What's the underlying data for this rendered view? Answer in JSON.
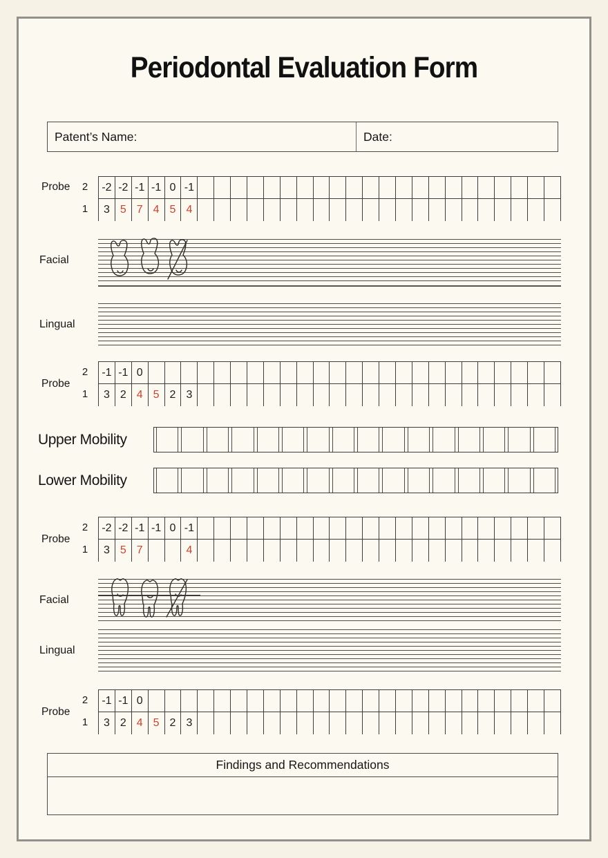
{
  "title": "Periodontal Evaluation Form",
  "patient_box": {
    "name_label": "Patent’s Name:",
    "date_label": "Date:"
  },
  "probe_sections": [
    {
      "label": "Probe",
      "row_labels": [
        "2",
        "1"
      ],
      "columns": 28,
      "rows": [
        [
          {
            "t": "-2"
          },
          {
            "t": "-2"
          },
          {
            "t": "-1"
          },
          {
            "t": "-1"
          },
          {
            "t": "0"
          },
          {
            "t": "-1"
          }
        ],
        [
          {
            "t": "3"
          },
          {
            "t": "5",
            "red": true
          },
          {
            "t": "7",
            "red": true
          },
          {
            "t": "4",
            "red": true
          },
          {
            "t": "5",
            "red": true
          },
          {
            "t": "4",
            "red": true
          }
        ]
      ]
    },
    {
      "label": "Probe",
      "row_labels": [
        "2",
        "1"
      ],
      "columns": 28,
      "rows": [
        [
          {
            "t": "-1"
          },
          {
            "t": "-1"
          },
          {
            "t": "0"
          }
        ],
        [
          {
            "t": "3"
          },
          {
            "t": "2"
          },
          {
            "t": "4",
            "red": true
          },
          {
            "t": "5",
            "red": true
          },
          {
            "t": "2"
          },
          {
            "t": "3"
          }
        ]
      ]
    },
    {
      "label": "Probe",
      "row_labels": [
        "2",
        "1"
      ],
      "columns": 28,
      "rows": [
        [
          {
            "t": "-2"
          },
          {
            "t": "-2"
          },
          {
            "t": "-1"
          },
          {
            "t": "-1"
          },
          {
            "t": "0"
          },
          {
            "t": "-1"
          }
        ],
        [
          {
            "t": "3"
          },
          {
            "t": "5",
            "red": true
          },
          {
            "t": "7",
            "red": true
          },
          {
            "t": ""
          },
          {
            "t": ""
          },
          {
            "t": "4",
            "red": true
          }
        ]
      ]
    },
    {
      "label": "Probe",
      "row_labels": [
        "2",
        "1"
      ],
      "columns": 28,
      "rows": [
        [
          {
            "t": "-1"
          },
          {
            "t": "-1"
          },
          {
            "t": "0"
          }
        ],
        [
          {
            "t": "3"
          },
          {
            "t": "2"
          },
          {
            "t": "4",
            "red": true
          },
          {
            "t": "5",
            "red": true
          },
          {
            "t": "2"
          },
          {
            "t": "3"
          }
        ]
      ]
    }
  ],
  "arch_sections": [
    {
      "facial_label": "Facial",
      "lingual_label": "Lingual",
      "teeth_count": 3,
      "teeth_direction": "roots-up"
    },
    {
      "facial_label": "Facial",
      "lingual_label": "Lingual",
      "teeth_count": 3,
      "teeth_direction": "roots-down"
    }
  ],
  "mobility": {
    "upper_label": "Upper Mobility",
    "lower_label": "Lower Mobility",
    "cells_per_row": 16
  },
  "findings": {
    "title": "Findings and Recommendations"
  },
  "colors": {
    "value_red": "#c8422f",
    "grid_line": "#3c3c3c",
    "paper_bg": "#fcfaf0",
    "page_bg": "#f6f3e6",
    "frame_border": "#92908a"
  }
}
